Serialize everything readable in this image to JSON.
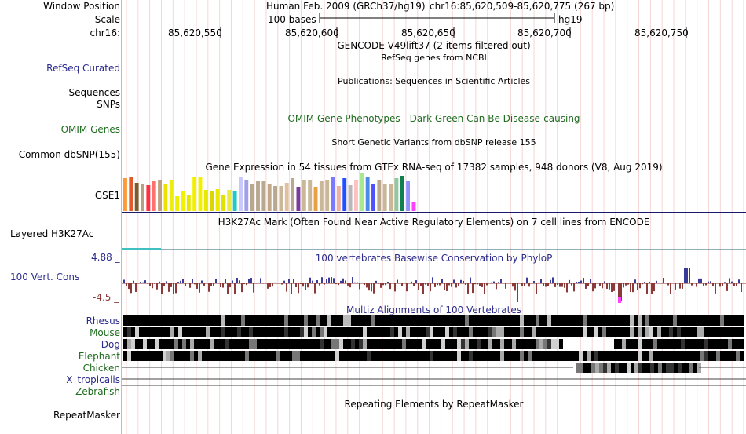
{
  "header": {
    "window_position_label": "Window Position",
    "scale_label": "Scale",
    "chrom_label": "chr16:",
    "assembly_text": "Human Feb. 2009 (GRCh37/hg19)",
    "position_text": "chr16:85,620,509-85,620,775 (267 bp)",
    "scale_text": "100 bases",
    "scale_db": "hg19",
    "ruler_ticks": [
      "85,620,550",
      "85,620,600",
      "85,620,650",
      "85,620,700",
      "85,620,750"
    ]
  },
  "tracks": {
    "gencode_title": "GENCODE V49lift37 (2 items filtered out)",
    "refseq_title": "RefSeq genes from NCBI",
    "refseq_label": "RefSeq Curated",
    "publications_title": "Publications: Sequences in Scientific Articles",
    "sequences_label": "Sequences",
    "snps_label": "SNPs",
    "omim_title": "OMIM Gene Phenotypes - Dark Green Can Be Disease-causing",
    "omim_label": "OMIM Genes",
    "dbsnp_title": "Short Genetic Variants from dbSNP release 155",
    "dbsnp_label": "Common dbSNP(155)",
    "gtex_title": "Gene Expression in 54 tissues from GTEx RNA-seq of 17382 samples, 948 donors (V8, Aug 2019)",
    "gtex_label": "GSE1",
    "h3k27ac_title": "H3K27Ac Mark (Often Found Near Active Regulatory Elements) on 7 cell lines from ENCODE",
    "h3k27ac_label": "Layered H3K27Ac",
    "phylop_title": "100 vertebrates Basewise Conservation by PhyloP",
    "phylop_label": "100 Vert. Cons",
    "phylop_max": "4.88 _",
    "phylop_min": "-4.5 _",
    "multiz_title": "Multiz Alignments of 100 Vertebrates",
    "species": [
      {
        "name": "Rhesus",
        "color": "#2b2b8c"
      },
      {
        "name": "Mouse",
        "color": "#1f6b1f"
      },
      {
        "name": "Dog",
        "color": "#2b2b8c"
      },
      {
        "name": "Elephant",
        "color": "#1f6b1f"
      },
      {
        "name": "Chicken",
        "color": "#1f6b1f"
      },
      {
        "name": "X_tropicalis",
        "color": "#2b2b8c"
      },
      {
        "name": "Zebrafish",
        "color": "#1f6b1f"
      }
    ],
    "repeat_title": "Repeating Elements by RepeatMasker",
    "repeat_label": "RepeatMasker"
  },
  "colors": {
    "conservation_pos": "#3a3a9a",
    "conservation_neg": "#8b3a3a",
    "label_blue": "#2b2b8c",
    "label_green": "#1f6b1f",
    "grid": "#f4d6d6"
  },
  "gtex_bar_colors": [
    "#ff9a36",
    "#e05a2b",
    "#7a5c2e",
    "#b8a080",
    "#ff3040",
    "#ff7070",
    "#c0a080",
    "#f0e000",
    "#ecec10",
    "#eeee00",
    "#f2f200",
    "#e6e600",
    "#f0f000",
    "#f2f000",
    "#e8e800",
    "#d8d800",
    "#eaea00",
    "#e2e200",
    "#eaea40",
    "#20c8c8",
    "#c8c8ff",
    "#a0a0e8",
    "#b8a890",
    "#b8a890",
    "#b8a890",
    "#c0a888",
    "#b8a890",
    "#c8b898",
    "#e0c0a0",
    "#b8a890",
    "#7a3aa0",
    "#c8b898",
    "#c8b898",
    "#e8a040",
    "#c8b898",
    "#c8b898",
    "#7a7aff",
    "#f0b0a0",
    "#2050ff",
    "#b8b8b8",
    "#ffc0c0",
    "#a8e890",
    "#4a8ae8",
    "#5050ff",
    "#b8a890",
    "#c8b898",
    "#c8b898",
    "#90c8a0",
    "#108050",
    "#9090ff",
    "#ff40ff"
  ],
  "gtex_bar_heights": [
    42,
    43,
    36,
    35,
    33,
    38,
    40,
    35,
    40,
    19,
    26,
    21,
    44,
    44,
    27,
    26,
    28,
    20,
    27,
    26,
    44,
    40,
    34,
    38,
    38,
    35,
    32,
    32,
    36,
    42,
    31,
    40,
    40,
    31,
    38,
    40,
    44,
    32,
    42,
    33,
    40,
    48,
    44,
    35,
    40,
    34,
    35,
    42,
    45,
    38,
    11
  ]
}
